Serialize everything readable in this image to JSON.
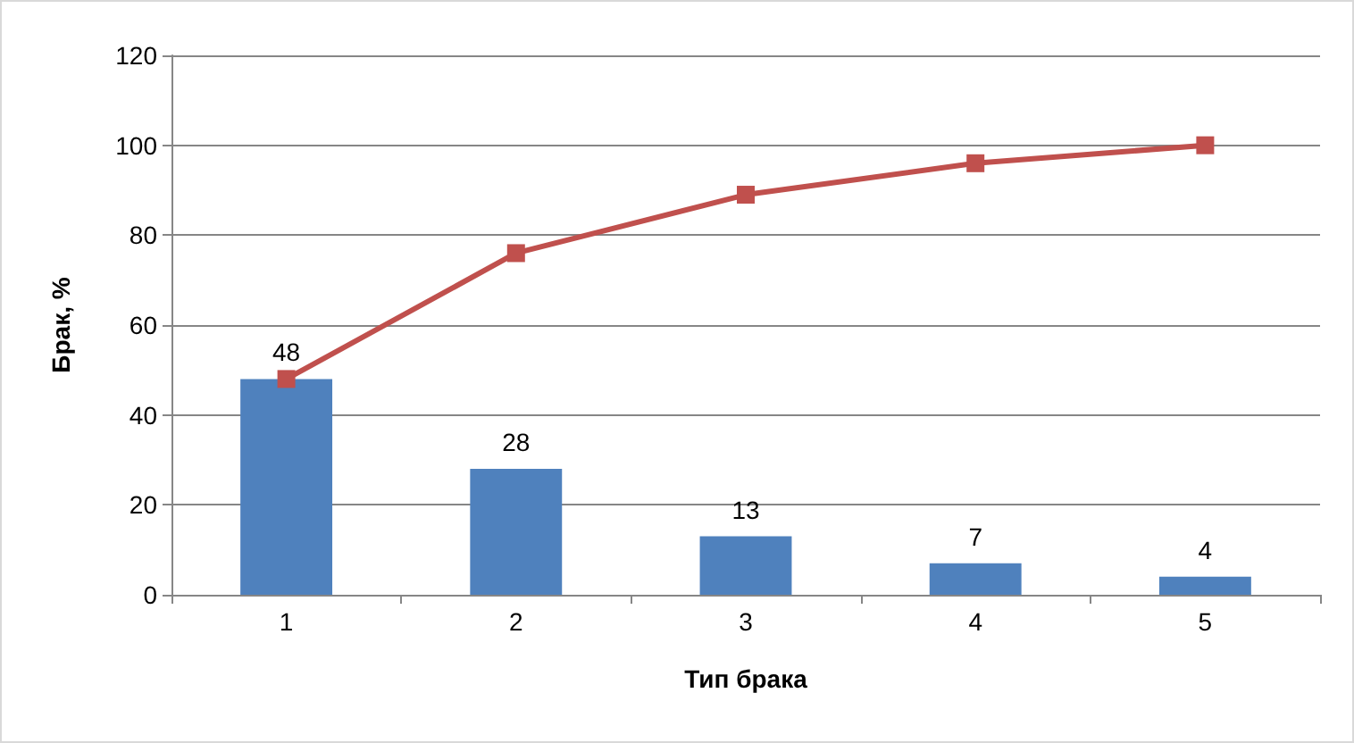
{
  "chart_data": {
    "type": "bar",
    "xlabel": "Тип брака",
    "ylabel": "Брак, %",
    "categories": [
      "1",
      "2",
      "3",
      "4",
      "5"
    ],
    "series": [
      {
        "color": "#4f81bd",
        "values": [
          48,
          28,
          13,
          7,
          4
        ],
        "value_labels": [
          "48",
          "28",
          "13",
          "7",
          "4"
        ]
      },
      {
        "type": "line",
        "color": "#c0504d",
        "values": [
          48,
          76,
          89,
          96,
          100
        ],
        "marker": "square"
      }
    ],
    "ylim": [
      0,
      120
    ],
    "yticks": [
      0,
      20,
      40,
      60,
      80,
      100,
      120
    ],
    "grid": "y"
  }
}
